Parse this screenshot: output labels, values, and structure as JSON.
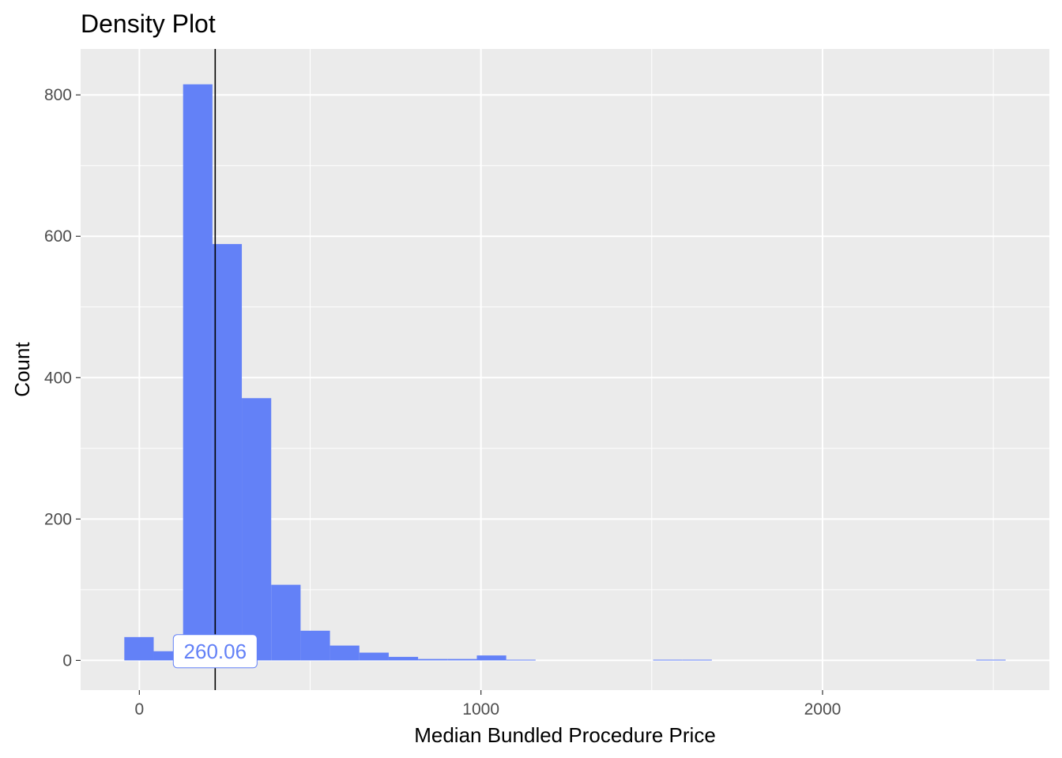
{
  "chart_data": {
    "type": "bar",
    "title": "Density Plot",
    "xlabel": "Median Bundled Procedure Price",
    "ylabel": "Count",
    "bin_width": 86,
    "bins": [
      {
        "x0": -44,
        "x1": 42,
        "count": 33
      },
      {
        "x0": 42,
        "x1": 128,
        "count": 13
      },
      {
        "x0": 128,
        "x1": 214,
        "count": 815
      },
      {
        "x0": 214,
        "x1": 300,
        "count": 589
      },
      {
        "x0": 300,
        "x1": 386,
        "count": 371
      },
      {
        "x0": 386,
        "x1": 472,
        "count": 107
      },
      {
        "x0": 472,
        "x1": 558,
        "count": 42
      },
      {
        "x0": 558,
        "x1": 644,
        "count": 21
      },
      {
        "x0": 644,
        "x1": 730,
        "count": 11
      },
      {
        "x0": 730,
        "x1": 816,
        "count": 5
      },
      {
        "x0": 816,
        "x1": 902,
        "count": 2
      },
      {
        "x0": 902,
        "x1": 988,
        "count": 2
      },
      {
        "x0": 988,
        "x1": 1074,
        "count": 7
      },
      {
        "x0": 1074,
        "x1": 1160,
        "count": 1
      },
      {
        "x0": 1504,
        "x1": 1590,
        "count": 1
      },
      {
        "x0": 1590,
        "x1": 1676,
        "count": 1
      },
      {
        "x0": 2450,
        "x1": 2536,
        "count": 1
      }
    ],
    "xlim": [
      -172,
      2664
    ],
    "ylim": [
      -42,
      865
    ],
    "x_ticks": [
      0,
      1000,
      2000
    ],
    "x_minor_ticks": [
      500,
      1500,
      2500
    ],
    "y_ticks": [
      0,
      200,
      400,
      600,
      800
    ],
    "y_minor_ticks": [
      100,
      300,
      500,
      700
    ],
    "reference_line": {
      "x": 222,
      "label": "260.06",
      "label_y": 13
    },
    "grid": true,
    "legend": "none",
    "colors": {
      "bar_fill": "#6381f7",
      "panel_background": "#ebebeb",
      "grid_line": "#ffffff",
      "reference_line": "#000000",
      "label_text": "#6381f7"
    }
  }
}
